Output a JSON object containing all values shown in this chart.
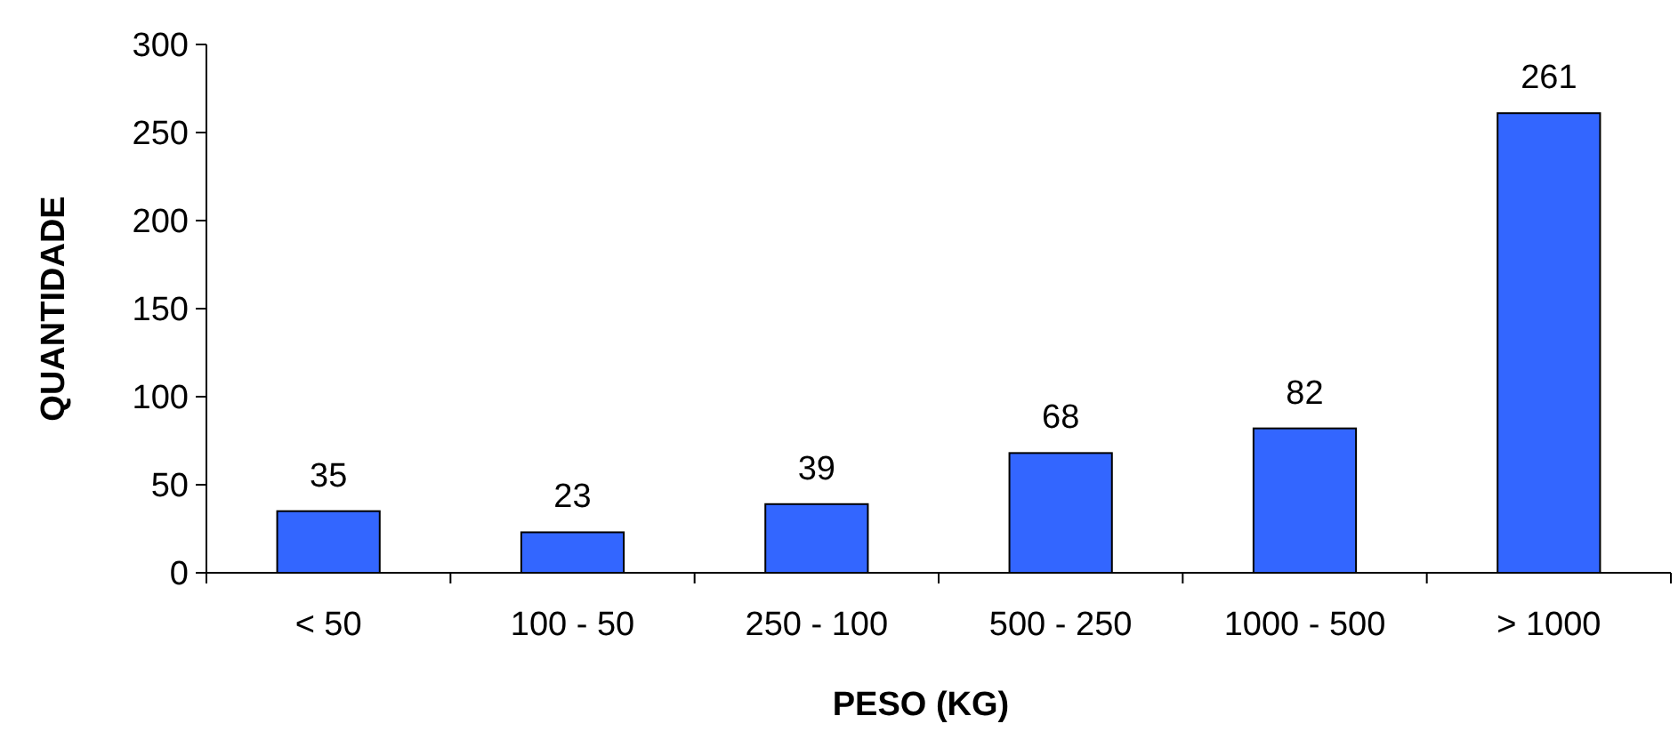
{
  "chart_data": {
    "type": "bar",
    "xlabel": "PESO (KG)",
    "ylabel": "QUANTIDADE",
    "categories": [
      "< 50",
      "100 - 50",
      "250 - 100",
      "500 - 250",
      "1000 - 500",
      "> 1000"
    ],
    "values": [
      35,
      23,
      39,
      68,
      82,
      261
    ],
    "color": "#3366ff",
    "ylim": [
      0,
      300
    ],
    "yticks": [
      0,
      50,
      100,
      150,
      200,
      250,
      300
    ],
    "data_labels": true
  }
}
